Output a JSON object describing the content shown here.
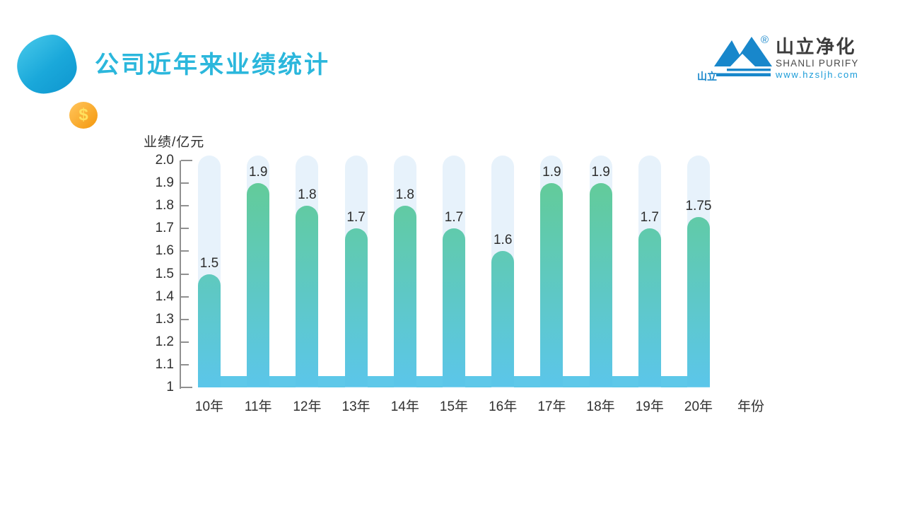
{
  "slide": {
    "title": "公司近年来业绩统计",
    "title_color": "#2bb7dc",
    "decor": {
      "coin_symbol": "$"
    },
    "logo": {
      "mark_label": "山立",
      "registered_mark": "®",
      "name_cn": "山立净化",
      "name_en": "SHANLI PURIFY",
      "website": "www.hzsljh.com",
      "brand_blue": "#1887cb",
      "website_blue": "#1b9cd9"
    }
  },
  "chart_data": {
    "type": "bar",
    "title": "公司近年来业绩统计",
    "ylabel": "业绩/亿元",
    "xlabel": "年份",
    "categories": [
      "10年",
      "11年",
      "12年",
      "13年",
      "14年",
      "15年",
      "16年",
      "17年",
      "18年",
      "19年",
      "20年"
    ],
    "values": [
      1.5,
      1.9,
      1.8,
      1.7,
      1.8,
      1.7,
      1.6,
      1.9,
      1.9,
      1.7,
      1.75
    ],
    "value_labels": [
      "1.5",
      "1.9",
      "1.8",
      "1.7",
      "1.8",
      "1.7",
      "1.6",
      "1.9",
      "1.9",
      "1.7",
      "1.75"
    ],
    "ylim": [
      1,
      2
    ],
    "ytick_labels": [
      "2.0",
      "1.9",
      "1.8",
      "1.7",
      "1.6",
      "1.5",
      "1.4",
      "1.3",
      "1.2",
      "1.1",
      "1"
    ],
    "grid": false,
    "legend": null,
    "colors": {
      "bar_gradient_top": "#63cc8f",
      "bar_gradient_bottom": "#5bc6ea",
      "bar_track": "#e7f2fb",
      "baseline": "#5ec8e9",
      "axis": "#909090",
      "label_text": "#303030"
    }
  }
}
